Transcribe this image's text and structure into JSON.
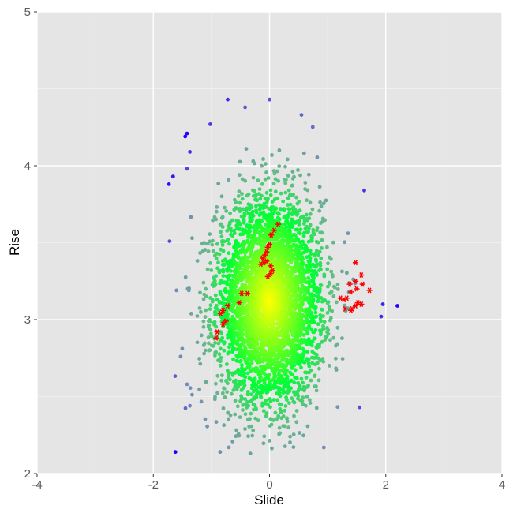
{
  "chart_data": {
    "type": "scatter",
    "title": "",
    "xlabel": "Slide",
    "ylabel": "Rise",
    "xlim": [
      -4,
      4
    ],
    "ylim": [
      2,
      5
    ],
    "x_ticks": [
      -4,
      -2,
      0,
      2,
      4
    ],
    "x_tick_labels": [
      "-4",
      "-2",
      "0",
      "2",
      "4"
    ],
    "y_ticks": [
      2,
      3,
      4,
      5
    ],
    "y_tick_labels": [
      "2",
      "3",
      "4",
      "5"
    ],
    "grid": true,
    "legend": "none",
    "background_color": "#e5e5e5",
    "grid_major_color": "#ffffff",
    "grid_minor_color": "#f2f2f2",
    "colors": {
      "center": "#ffff00",
      "middle": "#00ff33",
      "outer": "#66bb88",
      "far": "#7788bb",
      "extreme": "#2200ff",
      "highlight": "#ff0000"
    },
    "cloud": {
      "count": 4200,
      "x_mean": 0.0,
      "x_sd": 0.45,
      "y_mean": 3.12,
      "y_sd": 0.33,
      "x_range": [
        -1.75,
        2.2
      ],
      "y_range": [
        2.13,
        4.43
      ]
    },
    "outlier_points": [
      {
        "x": -1.62,
        "y": 2.14
      },
      {
        "x": -1.42,
        "y": 4.21
      },
      {
        "x": -1.45,
        "y": 4.19
      },
      {
        "x": -1.73,
        "y": 3.88
      },
      {
        "x": -1.66,
        "y": 3.93
      },
      {
        "x": -1.42,
        "y": 3.98
      },
      {
        "x": -1.37,
        "y": 4.09
      },
      {
        "x": -1.72,
        "y": 3.51
      },
      {
        "x": -1.6,
        "y": 3.19
      },
      {
        "x": -1.53,
        "y": 2.76
      },
      {
        "x": -1.42,
        "y": 2.58
      },
      {
        "x": -1.37,
        "y": 2.44
      },
      {
        "x": -0.72,
        "y": 4.43
      },
      {
        "x": -1.02,
        "y": 4.27
      },
      {
        "x": -0.42,
        "y": 4.38
      },
      {
        "x": 0.0,
        "y": 4.43
      },
      {
        "x": 0.55,
        "y": 4.33
      },
      {
        "x": -0.85,
        "y": 2.14
      },
      {
        "x": -0.7,
        "y": 2.17
      },
      {
        "x": -0.33,
        "y": 2.13
      },
      {
        "x": 1.55,
        "y": 2.43
      },
      {
        "x": 1.95,
        "y": 3.1
      },
      {
        "x": 2.2,
        "y": 3.09
      },
      {
        "x": 1.92,
        "y": 3.02
      }
    ],
    "highlight_series": {
      "marker": "asterisk",
      "points": [
        {
          "x": 0.15,
          "y": 3.62
        },
        {
          "x": 0.08,
          "y": 3.58
        },
        {
          "x": 0.03,
          "y": 3.55
        },
        {
          "x": 0.0,
          "y": 3.49
        },
        {
          "x": -0.03,
          "y": 3.47
        },
        {
          "x": -0.05,
          "y": 3.44
        },
        {
          "x": -0.08,
          "y": 3.42
        },
        {
          "x": -0.12,
          "y": 3.4
        },
        {
          "x": -0.1,
          "y": 3.37
        },
        {
          "x": -0.05,
          "y": 3.38
        },
        {
          "x": 0.02,
          "y": 3.35
        },
        {
          "x": 0.05,
          "y": 3.32
        },
        {
          "x": 0.02,
          "y": 3.3
        },
        {
          "x": -0.03,
          "y": 3.28
        },
        {
          "x": -0.15,
          "y": 3.36
        },
        {
          "x": -0.38,
          "y": 3.17
        },
        {
          "x": -0.48,
          "y": 3.17
        },
        {
          "x": -0.52,
          "y": 3.11
        },
        {
          "x": -0.72,
          "y": 3.09
        },
        {
          "x": -0.8,
          "y": 3.06
        },
        {
          "x": -0.84,
          "y": 3.04
        },
        {
          "x": -0.75,
          "y": 2.99
        },
        {
          "x": -0.8,
          "y": 2.97
        },
        {
          "x": -0.9,
          "y": 2.92
        },
        {
          "x": -0.92,
          "y": 2.88
        },
        {
          "x": 1.48,
          "y": 3.37
        },
        {
          "x": 1.58,
          "y": 3.29
        },
        {
          "x": 1.48,
          "y": 3.25
        },
        {
          "x": 1.38,
          "y": 3.23
        },
        {
          "x": 1.6,
          "y": 3.23
        },
        {
          "x": 1.5,
          "y": 3.2
        },
        {
          "x": 1.4,
          "y": 3.18
        },
        {
          "x": 1.72,
          "y": 3.19
        },
        {
          "x": 1.33,
          "y": 3.14
        },
        {
          "x": 1.22,
          "y": 3.14
        },
        {
          "x": 1.28,
          "y": 3.13
        },
        {
          "x": 1.52,
          "y": 3.11
        },
        {
          "x": 1.58,
          "y": 3.1
        },
        {
          "x": 1.48,
          "y": 3.09
        },
        {
          "x": 1.3,
          "y": 3.07
        },
        {
          "x": 1.4,
          "y": 3.06
        },
        {
          "x": 1.42,
          "y": 3.07
        }
      ]
    }
  }
}
